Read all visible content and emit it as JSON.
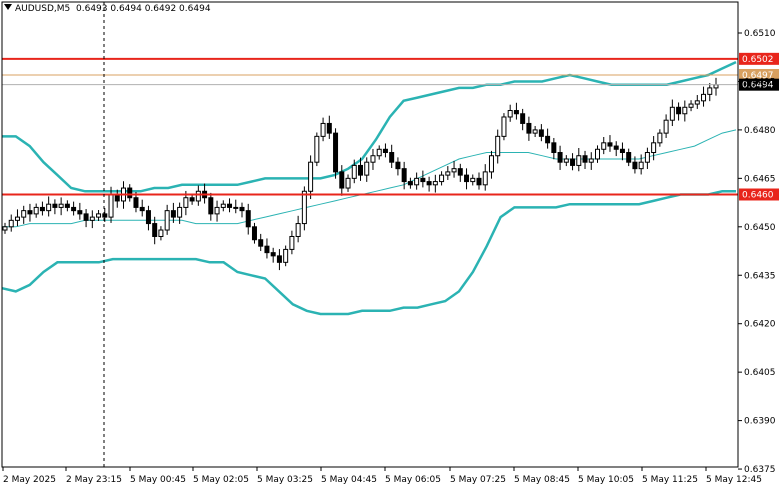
{
  "header": {
    "symbol": "AUDUSD,M5",
    "ohlc": "0.6493 0.6494 0.6492 0.6494"
  },
  "colors": {
    "background": "#ffffff",
    "candle": "#000000",
    "bollinger": "#2bb3b3",
    "level_line": "#e8251b",
    "price_line": "#d8a060",
    "grid_text": "#000000"
  },
  "chart_data": {
    "type": "candlestick",
    "instrument": "AUDUSD",
    "timeframe": "M5",
    "ylim": [
      0.6369,
      0.6524
    ],
    "y_ticks": [
      "0.6510",
      "0.6495",
      "0.6480",
      "0.6465",
      "0.6450",
      "0.6435",
      "0.6420",
      "0.6405",
      "0.6390",
      "0.6375"
    ],
    "y_tick_values": [
      0.651,
      0.6495,
      0.648,
      0.6465,
      0.645,
      0.6435,
      0.642,
      0.6405,
      0.639,
      0.6375
    ],
    "x_ticks": [
      "2 May 2025",
      "2 May 23:15",
      "5 May 00:45",
      "5 May 02:05",
      "5 May 03:25",
      "5 May 04:45",
      "5 May 06:05",
      "5 May 07:25",
      "5 May 08:45",
      "5 May 10:05",
      "5 May 11:25",
      "5 May 12:45"
    ],
    "levels": [
      {
        "label": "0.6502",
        "value": 0.6502,
        "style": "red"
      },
      {
        "label": "0.6497",
        "value": 0.6497,
        "style": "price"
      },
      {
        "label": "0.6494",
        "value": 0.6494,
        "style": "current"
      },
      {
        "label": "0.6460",
        "value": 0.646,
        "style": "red"
      }
    ],
    "closes": [
      0.645,
      0.6452,
      0.6453,
      0.6455,
      0.6454,
      0.6456,
      0.6455,
      0.6457,
      0.6456,
      0.6457,
      0.6456,
      0.6455,
      0.6454,
      0.6452,
      0.6453,
      0.6454,
      0.6453,
      0.646,
      0.6458,
      0.6462,
      0.6459,
      0.6456,
      0.6455,
      0.6451,
      0.6447,
      0.6449,
      0.6455,
      0.6453,
      0.6456,
      0.6459,
      0.6458,
      0.6461,
      0.6459,
      0.6454,
      0.6456,
      0.6457,
      0.6456,
      0.6456,
      0.6455,
      0.645,
      0.6446,
      0.6444,
      0.6442,
      0.6441,
      0.6439,
      0.6443,
      0.6447,
      0.6451,
      0.6461,
      0.647,
      0.6478,
      0.6482,
      0.6479,
      0.6467,
      0.6462,
      0.6465,
      0.6469,
      0.6466,
      0.647,
      0.6472,
      0.6474,
      0.6473,
      0.647,
      0.6468,
      0.6464,
      0.6463,
      0.6465,
      0.6464,
      0.6463,
      0.6464,
      0.6466,
      0.6467,
      0.6468,
      0.6466,
      0.6464,
      0.6465,
      0.6463,
      0.6467,
      0.6472,
      0.6478,
      0.6484,
      0.6486,
      0.6485,
      0.6482,
      0.6479,
      0.648,
      0.6478,
      0.6476,
      0.6473,
      0.647,
      0.6471,
      0.6469,
      0.6472,
      0.647,
      0.6471,
      0.6474,
      0.6476,
      0.6475,
      0.6474,
      0.6473,
      0.647,
      0.6468,
      0.647,
      0.6473,
      0.6476,
      0.6479,
      0.6483,
      0.6487,
      0.6485,
      0.6487,
      0.6488,
      0.6489,
      0.6491,
      0.6493,
      0.6494
    ],
    "bb_upper": [
      0.6478,
      0.6478,
      0.6475,
      0.647,
      0.6466,
      0.6462,
      0.6461,
      0.6461,
      0.6461,
      0.6461,
      0.6461,
      0.6462,
      0.6462,
      0.6463,
      0.6463,
      0.6463,
      0.6463,
      0.6463,
      0.6464,
      0.6465,
      0.6465,
      0.6465,
      0.6465,
      0.6465,
      0.6466,
      0.6468,
      0.6471,
      0.6477,
      0.6484,
      0.6489,
      0.649,
      0.6491,
      0.6492,
      0.6493,
      0.6493,
      0.6494,
      0.6494,
      0.6495,
      0.6495,
      0.6495,
      0.6496,
      0.6497,
      0.6496,
      0.6495,
      0.6494,
      0.6494,
      0.6494,
      0.6494,
      0.6494,
      0.6495,
      0.6496,
      0.6497,
      0.6499,
      0.6501
    ],
    "bb_middle": [
      0.645,
      0.645,
      0.6451,
      0.6451,
      0.6451,
      0.6451,
      0.6452,
      0.6452,
      0.6452,
      0.6452,
      0.6452,
      0.6452,
      0.6452,
      0.6452,
      0.6451,
      0.6451,
      0.6451,
      0.6451,
      0.6452,
      0.6453,
      0.6454,
      0.6455,
      0.6456,
      0.6457,
      0.6458,
      0.6459,
      0.646,
      0.6461,
      0.6462,
      0.6463,
      0.6465,
      0.6467,
      0.6469,
      0.6471,
      0.6472,
      0.6473,
      0.6473,
      0.6473,
      0.6473,
      0.6472,
      0.6471,
      0.6471,
      0.6471,
      0.6471,
      0.6471,
      0.6471,
      0.6471,
      0.6472,
      0.6473,
      0.6474,
      0.6475,
      0.6477,
      0.6479,
      0.648
    ],
    "bb_lower": [
      0.6431,
      0.643,
      0.6432,
      0.6436,
      0.6439,
      0.6439,
      0.6439,
      0.6439,
      0.644,
      0.644,
      0.644,
      0.644,
      0.644,
      0.644,
      0.644,
      0.6439,
      0.6439,
      0.6436,
      0.6435,
      0.6434,
      0.643,
      0.6426,
      0.6424,
      0.6423,
      0.6423,
      0.6423,
      0.6424,
      0.6424,
      0.6424,
      0.6425,
      0.6425,
      0.6426,
      0.6427,
      0.643,
      0.6436,
      0.6444,
      0.6453,
      0.6456,
      0.6456,
      0.6456,
      0.6456,
      0.6457,
      0.6457,
      0.6457,
      0.6457,
      0.6457,
      0.6457,
      0.6458,
      0.6459,
      0.646,
      0.646,
      0.646,
      0.6461,
      0.6461
    ]
  }
}
